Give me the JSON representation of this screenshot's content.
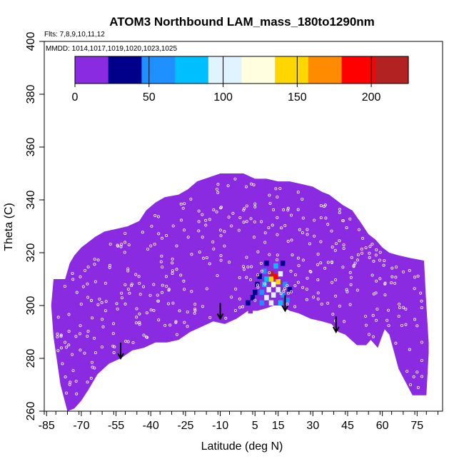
{
  "chart_data": {
    "type": "heatmap",
    "title": "ATOM3 Northbound LAM_mass_180to1290nm",
    "flights_label": "Flts: 7,8,9,10,11,12",
    "mmdd_label": "MMDD: 1014,1017,1019,1020,1023,1025",
    "xlabel": "Latitude (deg N)",
    "ylabel": "Theta (C)",
    "xlim": [
      -86,
      86
    ],
    "ylim": [
      260,
      400
    ],
    "x_ticks": [
      -85,
      -70,
      -55,
      -40,
      -25,
      -10,
      5,
      15,
      30,
      45,
      60,
      75
    ],
    "x_tick_labels": [
      "-85",
      "-70",
      "-55",
      "-40",
      "-25",
      "-10",
      "5",
      "15",
      "30",
      "45",
      "60",
      "75"
    ],
    "y_ticks": [
      260,
      280,
      300,
      320,
      340,
      360,
      380,
      400
    ],
    "y_tick_labels": [
      "260",
      "280",
      "300",
      "320",
      "340",
      "360",
      "380",
      "400"
    ],
    "colorbar": {
      "range": [
        0,
        225
      ],
      "ticks": [
        0,
        50,
        100,
        150,
        200
      ],
      "tick_labels": [
        "0",
        "50",
        "100",
        "150",
        "200"
      ],
      "colors": [
        "#8a2be2",
        "#00008b",
        "#1e90ff",
        "#00bfff",
        "#e0f4ff",
        "#ffffe0",
        "#ffd700",
        "#ff8c00",
        "#ff0000",
        "#b22222"
      ]
    },
    "background_value": 0,
    "coverage_top": [
      [
        -77,
        310
      ],
      [
        -75,
        316
      ],
      [
        -73,
        319
      ],
      [
        -70,
        322
      ],
      [
        -67,
        324
      ],
      [
        -64,
        326
      ],
      [
        -60,
        328
      ],
      [
        -55,
        329
      ],
      [
        -50,
        330
      ],
      [
        -45,
        332
      ],
      [
        -42,
        336
      ],
      [
        -38,
        339
      ],
      [
        -34,
        341
      ],
      [
        -28,
        342
      ],
      [
        -24,
        344
      ],
      [
        -20,
        347
      ],
      [
        -10,
        350
      ],
      [
        0,
        350
      ],
      [
        5,
        348
      ],
      [
        10,
        348
      ],
      [
        15,
        347
      ],
      [
        20,
        347
      ],
      [
        25,
        346
      ],
      [
        30,
        345
      ],
      [
        34,
        343
      ],
      [
        37,
        342
      ],
      [
        40,
        340
      ],
      [
        43,
        338
      ],
      [
        47,
        336
      ],
      [
        51,
        331
      ],
      [
        54,
        327
      ],
      [
        57,
        325
      ],
      [
        60,
        322
      ],
      [
        63,
        320
      ],
      [
        67,
        319
      ],
      [
        72,
        318
      ],
      [
        78,
        317
      ],
      [
        79,
        300
      ],
      [
        80,
        286
      ]
    ],
    "coverage_bottom": [
      [
        80,
        282
      ],
      [
        79,
        266
      ],
      [
        73,
        266
      ],
      [
        67,
        276
      ],
      [
        63,
        289
      ],
      [
        61,
        291
      ],
      [
        58,
        284
      ],
      [
        55,
        287
      ],
      [
        53,
        285
      ],
      [
        49,
        285
      ],
      [
        44,
        289
      ],
      [
        41,
        290
      ],
      [
        38,
        293
      ],
      [
        34,
        294
      ],
      [
        29,
        295
      ],
      [
        24,
        297
      ],
      [
        20,
        298
      ],
      [
        16,
        300
      ],
      [
        13,
        300
      ],
      [
        10,
        299
      ],
      [
        6,
        298
      ],
      [
        2,
        298
      ],
      [
        -3,
        295
      ],
      [
        -8,
        293
      ],
      [
        -13,
        294
      ],
      [
        -18,
        292
      ],
      [
        -23,
        290
      ],
      [
        -28,
        287
      ],
      [
        -33,
        286
      ],
      [
        -38,
        286
      ],
      [
        -43,
        284
      ],
      [
        -48,
        283
      ],
      [
        -53,
        280
      ],
      [
        -58,
        278
      ],
      [
        -63,
        274
      ],
      [
        -67,
        268
      ],
      [
        -70,
        264
      ],
      [
        -73,
        261
      ],
      [
        -76,
        260
      ],
      [
        -79,
        270
      ],
      [
        -82,
        288
      ],
      [
        -83,
        300
      ],
      [
        -82,
        310
      ]
    ],
    "enhanced_cells": [
      {
        "lat": -5,
        "theta": 302,
        "value": 12
      },
      {
        "lat": 0,
        "theta": 304,
        "value": 18
      },
      {
        "lat": 2,
        "theta": 301,
        "value": 25
      },
      {
        "lat": 4,
        "theta": 303,
        "value": 30
      },
      {
        "lat": 5,
        "theta": 305,
        "value": 35
      },
      {
        "lat": 6,
        "theta": 308,
        "value": 40
      },
      {
        "lat": 7,
        "theta": 311,
        "value": 30
      },
      {
        "lat": 8,
        "theta": 301,
        "value": 60
      },
      {
        "lat": 8,
        "theta": 305,
        "value": 55
      },
      {
        "lat": 9,
        "theta": 308,
        "value": 70
      },
      {
        "lat": 9,
        "theta": 313,
        "value": 45
      },
      {
        "lat": 10,
        "theta": 303,
        "value": 95
      },
      {
        "lat": 10,
        "theta": 310,
        "value": 85
      },
      {
        "lat": 11,
        "theta": 306,
        "value": 110
      },
      {
        "lat": 12,
        "theta": 301,
        "value": 90
      },
      {
        "lat": 12,
        "theta": 310,
        "value": 150
      },
      {
        "lat": 12,
        "theta": 312,
        "value": 210
      },
      {
        "lat": 13,
        "theta": 308,
        "value": 130
      },
      {
        "lat": 13,
        "theta": 304,
        "value": 100
      },
      {
        "lat": 14,
        "theta": 311,
        "value": 180
      },
      {
        "lat": 14,
        "theta": 315,
        "value": 70
      },
      {
        "lat": 15,
        "theta": 306,
        "value": 95
      },
      {
        "lat": 15,
        "theta": 309,
        "value": 140
      },
      {
        "lat": 16,
        "theta": 301,
        "value": 75
      },
      {
        "lat": 16,
        "theta": 312,
        "value": 90
      },
      {
        "lat": 17,
        "theta": 304,
        "value": 65
      },
      {
        "lat": 18,
        "theta": 308,
        "value": 60
      },
      {
        "lat": 19,
        "theta": 302,
        "value": 45
      },
      {
        "lat": 20,
        "theta": 306,
        "value": 35
      },
      {
        "lat": 21,
        "theta": 310,
        "value": 22
      },
      {
        "lat": 22,
        "theta": 303,
        "value": 20
      },
      {
        "lat": 23,
        "theta": 300,
        "value": 15
      },
      {
        "lat": 10,
        "theta": 316,
        "value": 40
      },
      {
        "lat": 6,
        "theta": 314,
        "value": 22
      },
      {
        "lat": 17,
        "theta": 316,
        "value": 30
      },
      {
        "lat": -3,
        "theta": 297,
        "value": 15
      },
      {
        "lat": -8,
        "theta": 296,
        "value": 12
      },
      {
        "lat": 3,
        "theta": 298,
        "value": 20
      },
      {
        "lat": 20,
        "theta": 300,
        "value": 18
      },
      {
        "lat": -55,
        "theta": 305,
        "value": 8
      },
      {
        "lat": -45,
        "theta": 306,
        "value": 8
      },
      {
        "lat": 25,
        "theta": 305,
        "value": 10
      }
    ],
    "tropopause_arrows": [
      {
        "lat": -53,
        "theta": 280
      },
      {
        "lat": -10,
        "theta": 295
      },
      {
        "lat": 18,
        "theta": 298
      },
      {
        "lat": 40,
        "theta": 290
      }
    ],
    "flight_track_markers": "white open circles"
  }
}
